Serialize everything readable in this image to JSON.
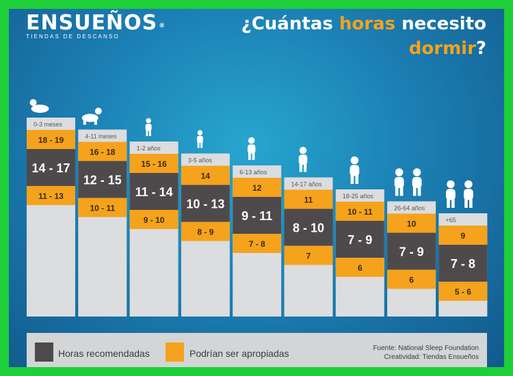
{
  "logo": {
    "name": "ENSUEÑOS",
    "reg": "®",
    "tagline": "TIENDAS DE DESCANSO"
  },
  "title": {
    "part1": "¿Cuántas ",
    "highlight1": "horas",
    "part2": " necesito",
    "highlight2": "dormir",
    "part3": "?"
  },
  "colors": {
    "recommended": "#4e4a4c",
    "appropriate": "#f5a21d",
    "column": "#dbdddf",
    "title_highlight": "#f5a21d"
  },
  "chart_data": {
    "type": "bar",
    "categories": [
      "0-3 meses",
      "4-11 meses",
      "1-2 años",
      "3-5 años",
      "6-13 años",
      "14-17 años",
      "18-25 años",
      "26-64 años",
      "+65"
    ],
    "series": [
      {
        "name": "Podrían ser apropiadas",
        "values": [
          "18 - 19",
          "16 - 18",
          "15 - 16",
          "14",
          "12",
          "11",
          "10 - 11",
          "10",
          "9"
        ]
      },
      {
        "name": "Horas recomendadas",
        "values": [
          "14 - 17",
          "12 - 15",
          "11 - 14",
          "10 - 13",
          "9 - 11",
          "8 - 10",
          "7 - 9",
          "7 - 9",
          "7 - 8"
        ]
      },
      {
        "name": "Podrían ser apropiadas",
        "values": [
          "11 - 13",
          "10 - 11",
          "9 - 10",
          "8 - 9",
          "7 - 8",
          "7",
          "6",
          "6",
          "5 - 6"
        ]
      }
    ],
    "icons": [
      "baby-icon",
      "crawling-baby-icon",
      "toddler-icon",
      "child-icon",
      "schoolchild-icon",
      "teen-skater-icon",
      "young-adult-icon",
      "adult-couple-icon",
      "elderly-couple-icon"
    ]
  },
  "legend": {
    "recommended": "Horas recomendadas",
    "appropriate": "Podrían ser apropiadas"
  },
  "source": {
    "line1": "Fuente: National Sleep Foundation",
    "line2": "Creatividad: Tiendas Ensueños"
  }
}
